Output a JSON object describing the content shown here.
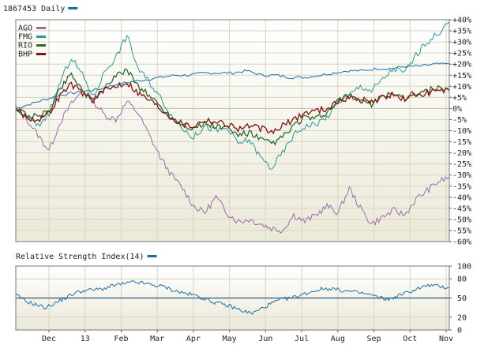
{
  "header": {
    "title": "1867453 Daily",
    "title_swatch": "#1a6fa8"
  },
  "indicator": {
    "title": "Relative Strength Index(14)",
    "swatch": "#1a6fa8"
  },
  "chart_data": [
    {
      "type": "line",
      "title": "1867453 Daily",
      "y_unit": "%",
      "ylim": [
        -60,
        40
      ],
      "y_ticks": [
        "+40%",
        "+35%",
        "+30%",
        "+25%",
        "+20%",
        "+15%",
        "+10%",
        "+5%",
        "0%",
        "-5%",
        "-10%",
        "-15%",
        "-20%",
        "-25%",
        "-30%",
        "-35%",
        "-40%",
        "-45%",
        "-50%",
        "-55%",
        "-60%"
      ],
      "x_labels": [
        "Dec",
        "13",
        "Feb",
        "Mar",
        "Apr",
        "May",
        "Jun",
        "Jul",
        "Aug",
        "Sep",
        "Oct",
        "Nov"
      ],
      "legend": "top-left",
      "grid": true,
      "baseline_color": "#1a6fa8",
      "baseline": [
        0,
        2,
        4,
        6,
        7,
        8,
        9,
        11,
        12,
        13,
        14,
        15,
        15,
        16,
        16,
        16,
        17,
        15,
        15,
        14,
        14,
        15,
        16,
        17,
        17,
        18,
        18,
        19,
        19,
        20,
        20
      ],
      "series": [
        {
          "name": "AGO",
          "color": "#9a6bab",
          "values": [
            0,
            -5,
            -12,
            -19,
            -6,
            2,
            8,
            3,
            -3,
            -5,
            3,
            -2,
            -12,
            -22,
            -30,
            -36,
            -44,
            -47,
            -40,
            -47,
            -51,
            -50,
            -52,
            -54,
            -55,
            -48,
            -51,
            -48,
            -44,
            -47,
            -36,
            -45,
            -52,
            -49,
            -46,
            -48,
            -41,
            -37,
            -33,
            -31
          ]
        },
        {
          "name": "FMG",
          "color": "#2f9898",
          "values": [
            0,
            -4,
            -8,
            -2,
            12,
            23,
            15,
            5,
            17,
            23,
            33,
            18,
            12,
            5,
            -3,
            -9,
            -13,
            -8,
            -10,
            -9,
            -16,
            -14,
            -22,
            -27,
            -20,
            -12,
            -8,
            -7,
            -4,
            3,
            6,
            10,
            8,
            13,
            18,
            16,
            24,
            30,
            34,
            39
          ]
        },
        {
          "name": "RIO",
          "color": "#2a6a2a",
          "values": [
            0,
            -3,
            -4,
            -1,
            9,
            16,
            8,
            3,
            10,
            14,
            18,
            10,
            6,
            1,
            -4,
            -7,
            -9,
            -7,
            -8,
            -9,
            -12,
            -11,
            -14,
            -16,
            -13,
            -8,
            -4,
            -5,
            -2,
            3,
            6,
            4,
            2,
            5,
            7,
            5,
            7,
            8,
            9,
            8
          ]
        },
        {
          "name": "BHP",
          "color": "#8a1010",
          "values": [
            0,
            -4,
            -5,
            -2,
            6,
            11,
            7,
            4,
            8,
            10,
            12,
            7,
            4,
            0,
            -4,
            -7,
            -8,
            -5,
            -6,
            -7,
            -9,
            -8,
            -9,
            -11,
            -8,
            -5,
            -2,
            -1,
            0,
            3,
            5,
            4,
            3,
            5,
            6,
            4,
            6,
            7,
            8,
            8
          ]
        }
      ]
    },
    {
      "type": "line",
      "title": "Relative Strength Index(14)",
      "ylim": [
        0,
        100
      ],
      "y_ticks": [
        "100",
        "80",
        "50",
        "20",
        "0"
      ],
      "reference_line": 50,
      "grid": true,
      "series": [
        {
          "name": "Relative Strength Index(14)",
          "color": "#1a6fa8",
          "values": [
            55,
            45,
            40,
            35,
            42,
            50,
            58,
            62,
            63,
            65,
            70,
            72,
            75,
            73,
            70,
            68,
            62,
            58,
            55,
            50,
            44,
            40,
            36,
            30,
            26,
            34,
            42,
            48,
            50,
            55,
            60,
            64,
            65,
            62,
            60,
            58,
            55,
            50,
            48,
            55,
            60,
            66,
            70,
            68,
            66
          ]
        }
      ]
    }
  ]
}
